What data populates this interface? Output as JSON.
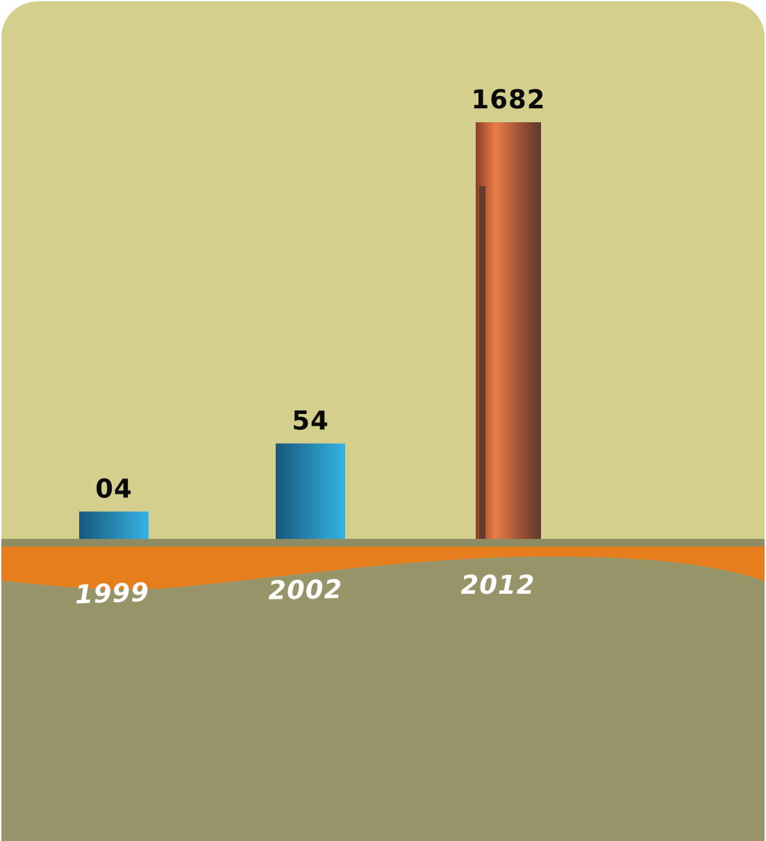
{
  "colors": {
    "background": "#d4cf8d",
    "ground": "#98946a",
    "ground_edge": "#8f8b63",
    "wave": "#e67e1e",
    "bar_blue_dark": "#18587a",
    "bar_blue_light": "#35b3e6",
    "bar_copper_dark": "#7e3a25",
    "bar_copper_light": "#e97c47",
    "bar_copper_shadow": "#633c2c"
  },
  "chart_data": {
    "type": "bar",
    "categories": [
      "1999",
      "2002",
      "2012"
    ],
    "values": [
      4,
      54,
      1682
    ],
    "data_labels": [
      "04",
      "54",
      "1682"
    ],
    "title": "",
    "xlabel": "",
    "ylabel": "",
    "grid": false,
    "legend": "none",
    "bar_styles": [
      "blue",
      "blue",
      "copper"
    ]
  }
}
